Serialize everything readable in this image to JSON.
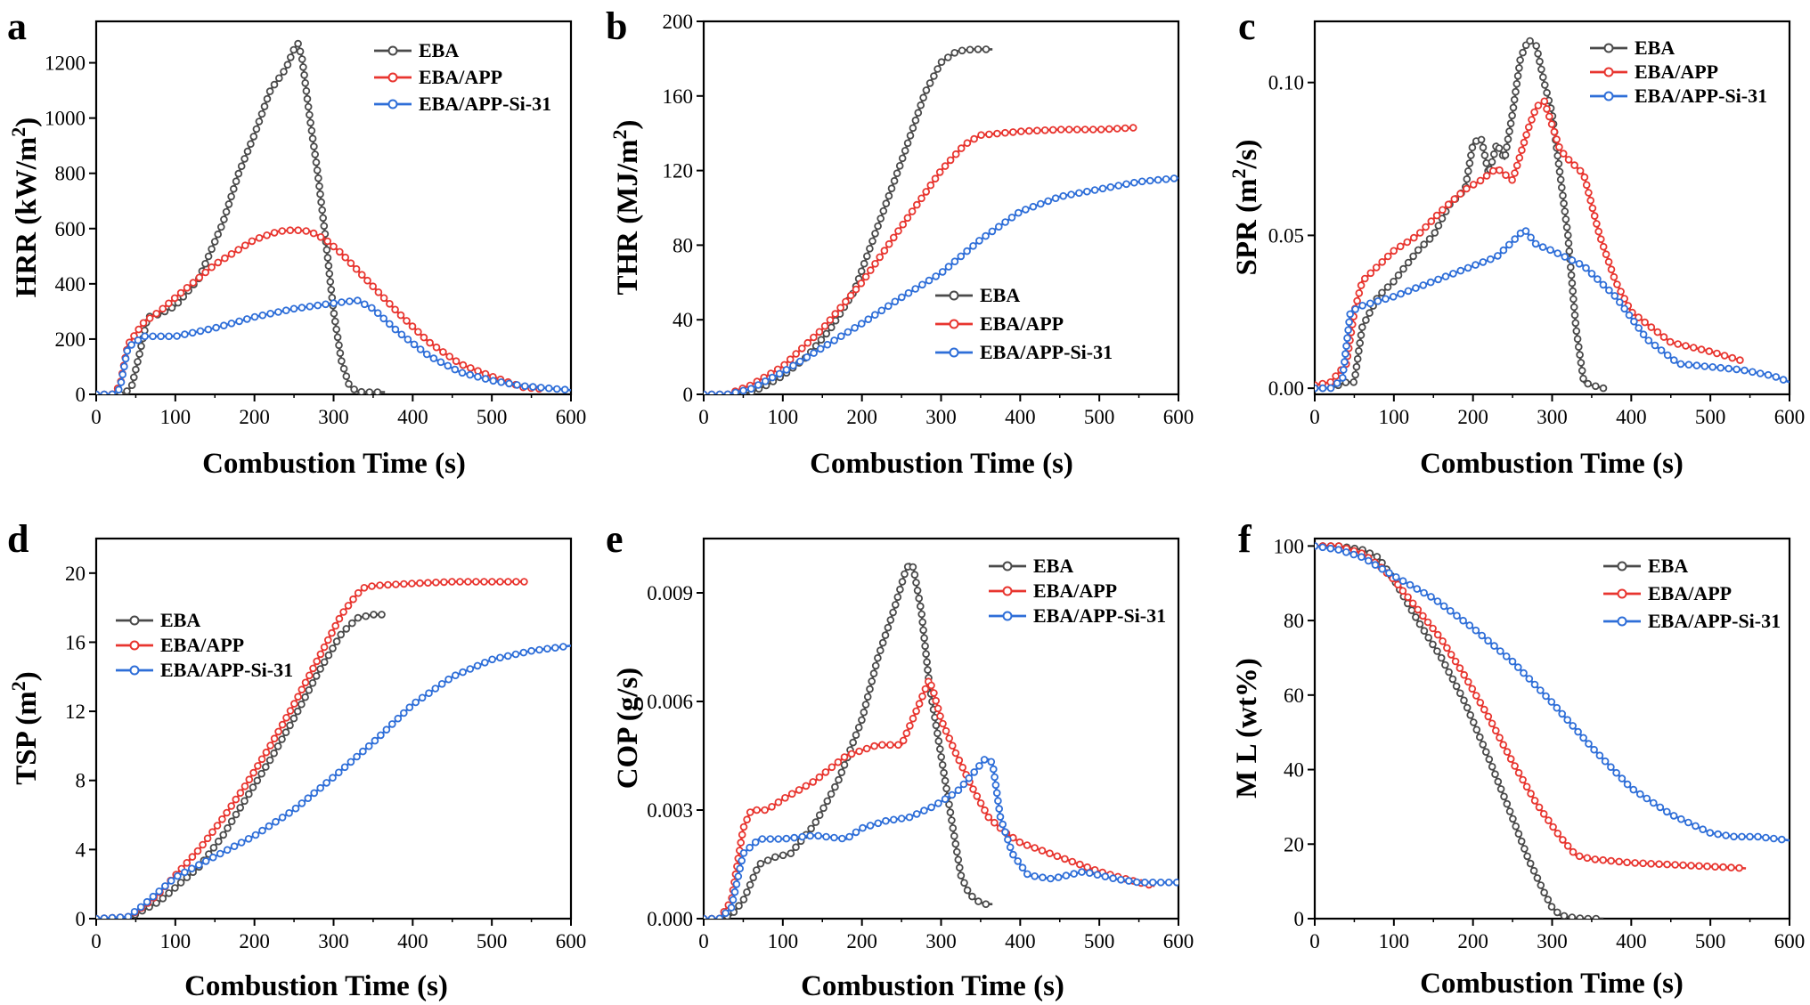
{
  "figure": {
    "colors": {
      "EBA": "#4a4a4a",
      "EBA/APP": "#e8352f",
      "EBA/APP-Si-31": "#2e6ed8"
    }
  },
  "chart_data": [
    {
      "panel": "a",
      "type": "line",
      "xlabel": "Combustion Time (s)",
      "ylabel": "HRR (kW/m²)",
      "xlim": [
        0,
        600
      ],
      "ylim": [
        0,
        1350
      ],
      "xticks": [
        0,
        100,
        200,
        300,
        400,
        500,
        600
      ],
      "yticks": [
        0,
        200,
        400,
        600,
        800,
        1000,
        1200
      ],
      "ytick_labels": [
        "0",
        "200",
        "400",
        "600",
        "800",
        "1000",
        "1200"
      ],
      "legend_position": "top-right",
      "series": [
        {
          "name": "EBA",
          "x": [
            0,
            20,
            35,
            45,
            55,
            65,
            80,
            100,
            130,
            160,
            180,
            200,
            220,
            240,
            250,
            255,
            260,
            270,
            280,
            290,
            300,
            310,
            320,
            330,
            340,
            350,
            365
          ],
          "y": [
            0,
            0,
            0,
            30,
            150,
            280,
            290,
            320,
            420,
            620,
            800,
            940,
            1100,
            1180,
            1250,
            1270,
            1220,
            1000,
            800,
            560,
            300,
            120,
            30,
            10,
            8,
            8,
            8
          ]
        },
        {
          "name": "EBA/APP",
          "x": [
            0,
            20,
            30,
            40,
            60,
            80,
            100,
            150,
            200,
            230,
            250,
            270,
            290,
            310,
            340,
            380,
            420,
            460,
            500,
            540,
            560
          ],
          "y": [
            0,
            0,
            30,
            180,
            260,
            300,
            350,
            470,
            560,
            590,
            595,
            590,
            560,
            510,
            420,
            300,
            190,
            110,
            65,
            25,
            20
          ]
        },
        {
          "name": "EBA/APP-Si-31",
          "x": [
            0,
            20,
            30,
            40,
            60,
            100,
            150,
            200,
            250,
            300,
            330,
            350,
            380,
            420,
            460,
            500,
            540,
            580,
            600
          ],
          "y": [
            0,
            0,
            20,
            170,
            210,
            210,
            240,
            280,
            310,
            330,
            340,
            310,
            230,
            140,
            80,
            50,
            30,
            20,
            15
          ]
        }
      ]
    },
    {
      "panel": "b",
      "type": "line",
      "xlabel": "Combustion Time (s)",
      "ylabel": "THR (MJ/m²)",
      "xlim": [
        0,
        600
      ],
      "ylim": [
        0,
        200
      ],
      "xticks": [
        0,
        100,
        200,
        300,
        400,
        500,
        600
      ],
      "yticks": [
        0,
        40,
        80,
        120,
        160,
        200
      ],
      "ytick_labels": [
        "0",
        "40",
        "80",
        "120",
        "160",
        "200"
      ],
      "legend_position": "center-right",
      "series": [
        {
          "name": "EBA",
          "x": [
            0,
            20,
            40,
            60,
            80,
            100,
            130,
            160,
            190,
            220,
            250,
            280,
            300,
            320,
            340,
            365
          ],
          "y": [
            0,
            0,
            0,
            1,
            5,
            10,
            20,
            35,
            55,
            90,
            125,
            162,
            178,
            184,
            185,
            185
          ]
        },
        {
          "name": "EBA/APP",
          "x": [
            0,
            30,
            60,
            100,
            150,
            200,
            250,
            300,
            330,
            350,
            400,
            450,
            500,
            545
          ],
          "y": [
            0,
            0,
            5,
            15,
            35,
            60,
            90,
            120,
            134,
            139,
            141,
            142,
            142,
            143
          ]
        },
        {
          "name": "EBA/APP-Si-31",
          "x": [
            0,
            30,
            60,
            100,
            150,
            200,
            250,
            300,
            350,
            400,
            450,
            500,
            550,
            600
          ],
          "y": [
            0,
            0,
            3,
            12,
            25,
            38,
            52,
            65,
            83,
            98,
            106,
            110,
            114,
            116
          ]
        }
      ]
    },
    {
      "panel": "c",
      "type": "line",
      "xlabel": "Combustion Time (s)",
      "ylabel": "SPR (m²/s)",
      "xlim": [
        0,
        600
      ],
      "ylim": [
        -0.002,
        0.12
      ],
      "xticks": [
        0,
        100,
        200,
        300,
        400,
        500,
        600
      ],
      "yticks": [
        0,
        0.05,
        0.1
      ],
      "ytick_labels": [
        "0.00",
        "0.05",
        "0.10"
      ],
      "legend_position": "top-right",
      "series": [
        {
          "name": "EBA",
          "x": [
            0,
            20,
            40,
            50,
            60,
            80,
            100,
            130,
            150,
            170,
            190,
            200,
            210,
            220,
            230,
            240,
            250,
            260,
            270,
            280,
            290,
            300,
            310,
            320,
            330,
            340,
            350,
            365
          ],
          "y": [
            0,
            0,
            0.002,
            0.002,
            0.02,
            0.03,
            0.035,
            0.045,
            0.05,
            0.06,
            0.065,
            0.08,
            0.082,
            0.07,
            0.08,
            0.075,
            0.09,
            0.108,
            0.114,
            0.112,
            0.1,
            0.09,
            0.07,
            0.05,
            0.02,
            0.002,
            0.001,
            0
          ]
        },
        {
          "name": "EBA/APP",
          "x": [
            0,
            20,
            40,
            50,
            60,
            80,
            100,
            130,
            160,
            190,
            210,
            230,
            250,
            270,
            280,
            290,
            300,
            310,
            320,
            340,
            360,
            380,
            400,
            450,
            500,
            540
          ],
          "y": [
            0.001,
            0.002,
            0.008,
            0.025,
            0.035,
            0.04,
            0.045,
            0.05,
            0.058,
            0.065,
            0.068,
            0.072,
            0.068,
            0.085,
            0.092,
            0.094,
            0.086,
            0.078,
            0.075,
            0.07,
            0.05,
            0.035,
            0.025,
            0.015,
            0.012,
            0.009
          ]
        },
        {
          "name": "EBA/APP-Si-31",
          "x": [
            0,
            20,
            35,
            45,
            60,
            100,
            150,
            200,
            230,
            250,
            265,
            280,
            300,
            340,
            380,
            420,
            460,
            500,
            540,
            580,
            600
          ],
          "y": [
            0,
            0,
            0.003,
            0.025,
            0.027,
            0.03,
            0.035,
            0.04,
            0.043,
            0.048,
            0.052,
            0.047,
            0.045,
            0.04,
            0.03,
            0.016,
            0.008,
            0.007,
            0.006,
            0.004,
            0.002
          ]
        }
      ]
    },
    {
      "panel": "d",
      "type": "line",
      "xlabel": "Combustion Time (s)",
      "ylabel": "TSP (m²)",
      "xlim": [
        0,
        600
      ],
      "ylim": [
        0,
        22
      ],
      "xticks": [
        0,
        100,
        200,
        300,
        400,
        500,
        600
      ],
      "yticks": [
        0,
        4,
        8,
        12,
        16,
        20
      ],
      "ytick_labels": [
        "0",
        "4",
        "8",
        "12",
        "16",
        "20"
      ],
      "legend_position": "center-left",
      "series": [
        {
          "name": "EBA",
          "x": [
            0,
            40,
            60,
            80,
            100,
            130,
            160,
            190,
            220,
            250,
            280,
            310,
            330,
            350,
            365
          ],
          "y": [
            0,
            0,
            0.5,
            1,
            1.8,
            3,
            4.8,
            7,
            9.2,
            11.6,
            14.2,
            16.5,
            17.4,
            17.6,
            17.6
          ]
        },
        {
          "name": "EBA/APP",
          "x": [
            0,
            40,
            60,
            80,
            100,
            130,
            160,
            190,
            220,
            250,
            280,
            310,
            330,
            340,
            360,
            400,
            450,
            500,
            545
          ],
          "y": [
            0,
            0.1,
            0.7,
            1.5,
            2.5,
            4,
            5.8,
            7.8,
            10,
            12.4,
            15,
            17.6,
            18.8,
            19.2,
            19.3,
            19.4,
            19.5,
            19.5,
            19.5
          ]
        },
        {
          "name": "EBA/APP-Si-31",
          "x": [
            0,
            40,
            60,
            80,
            100,
            150,
            200,
            250,
            300,
            350,
            400,
            450,
            500,
            550,
            600
          ],
          "y": [
            0,
            0.1,
            0.8,
            1.6,
            2.4,
            3.6,
            4.8,
            6.3,
            8.2,
            10.2,
            12.4,
            14,
            15,
            15.5,
            15.8
          ]
        }
      ]
    },
    {
      "panel": "e",
      "type": "line",
      "xlabel": "Combustion Time (s)",
      "ylabel": "COP (g/s)",
      "xlim": [
        0,
        600
      ],
      "ylim": [
        0,
        0.0105
      ],
      "xticks": [
        0,
        100,
        200,
        300,
        400,
        500,
        600
      ],
      "yticks": [
        0,
        0.003,
        0.006,
        0.009
      ],
      "ytick_labels": [
        "0.000",
        "0.003",
        "0.006",
        "0.009"
      ],
      "legend_position": "top-right",
      "series": [
        {
          "name": "EBA",
          "x": [
            0,
            20,
            35,
            50,
            70,
            90,
            110,
            140,
            170,
            200,
            220,
            240,
            255,
            260,
            265,
            275,
            285,
            300,
            315,
            325,
            335,
            345,
            355,
            365
          ],
          "y": [
            0,
            0,
            0.0001,
            0.0005,
            0.0015,
            0.0017,
            0.0018,
            0.0026,
            0.0038,
            0.0055,
            0.0072,
            0.0085,
            0.0096,
            0.0098,
            0.0097,
            0.0085,
            0.0065,
            0.0045,
            0.0025,
            0.0012,
            0.0007,
            0.0005,
            0.0004,
            0.0004
          ]
        },
        {
          "name": "EBA/APP",
          "x": [
            0,
            20,
            35,
            50,
            60,
            80,
            100,
            140,
            180,
            220,
            250,
            270,
            285,
            290,
            300,
            320,
            340,
            360,
            380,
            400,
            450,
            500,
            550,
            570
          ],
          "y": [
            0,
            0,
            0.0005,
            0.0025,
            0.003,
            0.003,
            0.0033,
            0.0038,
            0.0045,
            0.0048,
            0.0048,
            0.0058,
            0.0066,
            0.0063,
            0.0055,
            0.0045,
            0.0036,
            0.0028,
            0.0024,
            0.0021,
            0.0017,
            0.0013,
            0.001,
            0.0009
          ]
        },
        {
          "name": "EBA/APP-Si-31",
          "x": [
            0,
            20,
            35,
            50,
            70,
            100,
            140,
            180,
            200,
            230,
            260,
            290,
            320,
            340,
            355,
            360,
            365,
            375,
            390,
            410,
            440,
            480,
            520,
            550,
            600
          ],
          "y": [
            0,
            0,
            0.0003,
            0.0018,
            0.0022,
            0.0022,
            0.0023,
            0.0022,
            0.0025,
            0.0027,
            0.0028,
            0.0031,
            0.0035,
            0.004,
            0.0044,
            0.0044,
            0.0043,
            0.0028,
            0.0018,
            0.0012,
            0.0011,
            0.0013,
            0.0011,
            0.001,
            0.001
          ]
        }
      ]
    },
    {
      "panel": "f",
      "type": "line",
      "xlabel": "Combustion Time (s)",
      "ylabel": "M L (wt%)",
      "xlim": [
        0,
        600
      ],
      "ylim": [
        0,
        102
      ],
      "xticks": [
        0,
        100,
        200,
        300,
        400,
        500,
        600
      ],
      "yticks": [
        0,
        20,
        40,
        60,
        80,
        100
      ],
      "ytick_labels": [
        "0",
        "20",
        "40",
        "60",
        "80",
        "100"
      ],
      "legend_position": "top-right",
      "series": [
        {
          "name": "EBA",
          "x": [
            0,
            30,
            60,
            80,
            100,
            130,
            160,
            190,
            220,
            250,
            270,
            290,
            300,
            310,
            320,
            340,
            365
          ],
          "y": [
            100,
            100,
            99,
            97,
            91,
            80,
            70,
            58,
            43,
            27,
            16,
            7,
            3,
            1,
            0.5,
            0,
            0
          ]
        },
        {
          "name": "EBA/APP",
          "x": [
            0,
            30,
            60,
            80,
            100,
            130,
            160,
            190,
            220,
            250,
            280,
            310,
            330,
            350,
            400,
            450,
            500,
            545
          ],
          "y": [
            100,
            100,
            98,
            95,
            91,
            83,
            75,
            65,
            54,
            42,
            31,
            22,
            17,
            16,
            15,
            14.5,
            14,
            13.5
          ]
        },
        {
          "name": "EBA/APP-Si-31",
          "x": [
            0,
            30,
            60,
            100,
            150,
            200,
            250,
            300,
            350,
            400,
            450,
            500,
            530,
            560,
            600
          ],
          "y": [
            100,
            99,
            97,
            92,
            86,
            78,
            69,
            58,
            46,
            35,
            28,
            23,
            22,
            22,
            21
          ]
        }
      ]
    }
  ]
}
